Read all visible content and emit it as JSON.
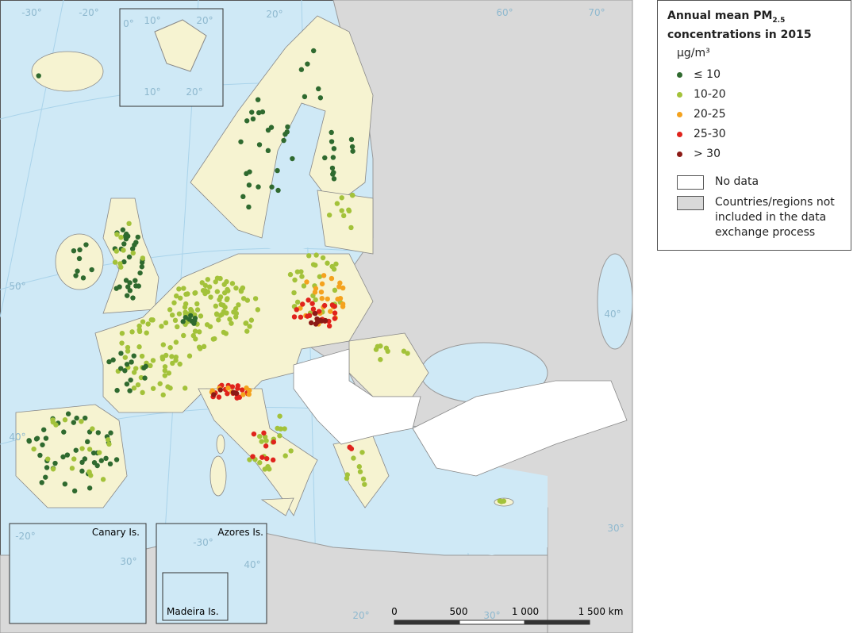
{
  "legend": {
    "title": {
      "main": "Annual mean PM",
      "sub": "2.5",
      "rest": "concentrations in 2015"
    },
    "unit": "µg/m³",
    "classes": [
      {
        "label": "≤ 10",
        "color": "#2f6a2f"
      },
      {
        "label": "10-20",
        "color": "#a3c23a"
      },
      {
        "label": "20-25",
        "color": "#f4a21e"
      },
      {
        "label": "25-30",
        "color": "#e0231c"
      },
      {
        "label": "> 30",
        "color": "#8c1a16"
      }
    ],
    "areas": [
      {
        "label": "No data",
        "color": "#ffffff"
      },
      {
        "label": "Countries/regions not included in the data exchange process",
        "color": "#d9d9d9"
      }
    ]
  },
  "insets": [
    "Canary Is.",
    "Azores Is.",
    "Madeira Is."
  ],
  "scale_bar": [
    "0",
    "500",
    "1 000",
    "1 500 km"
  ],
  "graticule_labels": [
    "-30°",
    "-20°",
    "20°",
    "60°",
    "70°",
    "50°",
    "40°",
    "40°",
    "30°",
    "20°",
    "30°",
    "0°",
    "10°",
    "20°",
    "10°",
    "20°",
    "-20°",
    "30°",
    "-30°",
    "40°"
  ]
}
